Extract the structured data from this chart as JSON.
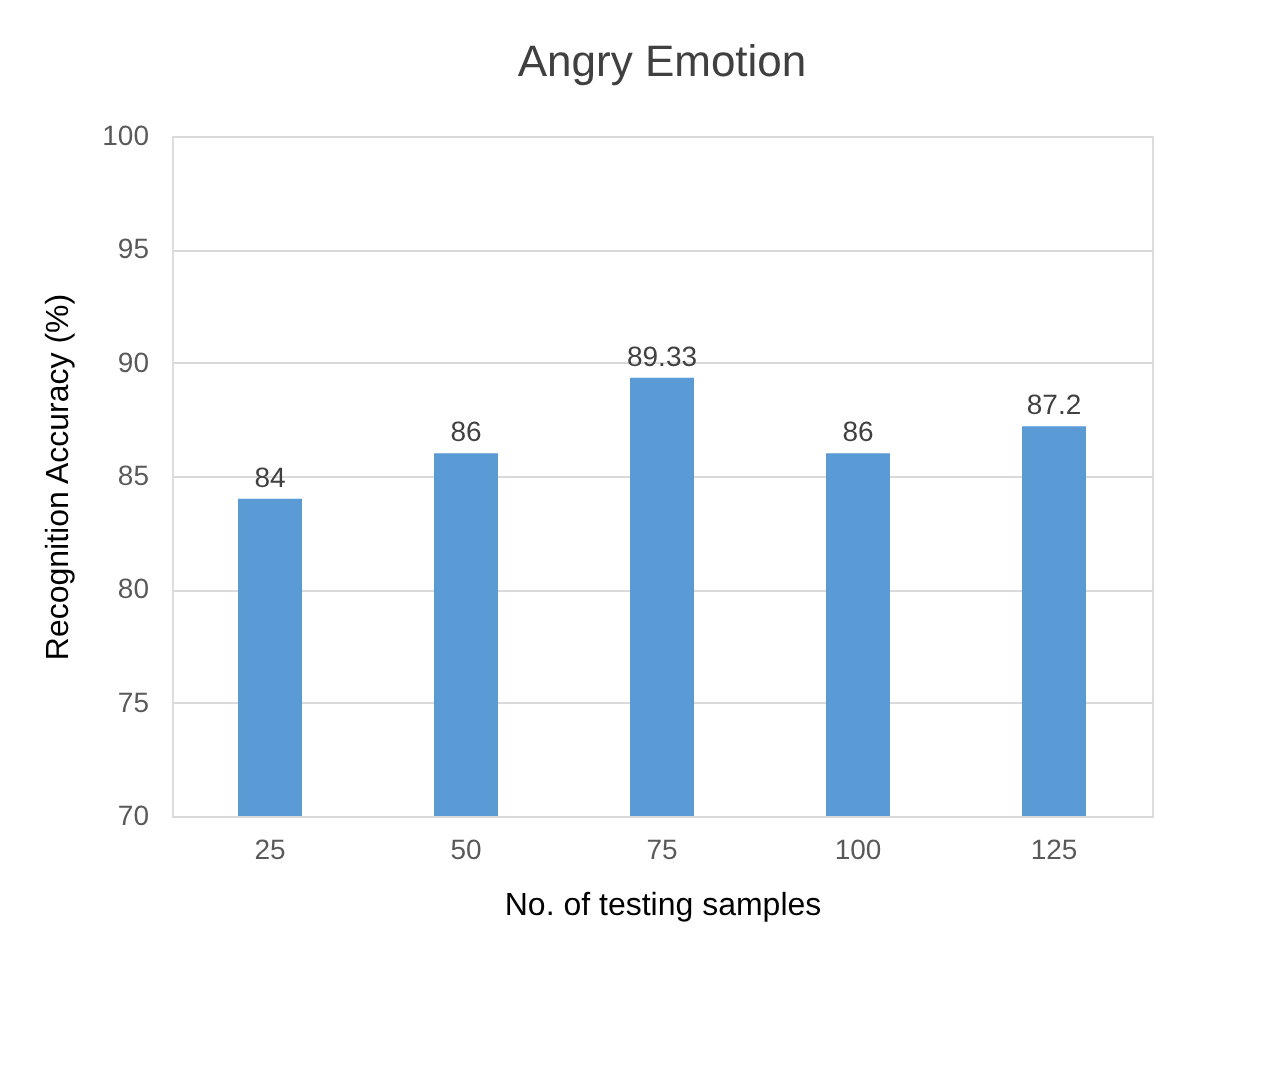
{
  "chart_data": {
    "type": "bar",
    "title": "Angry Emotion",
    "xlabel": "No. of testing samples",
    "ylabel": "Recognition Accuracy (%)",
    "categories": [
      "25",
      "50",
      "75",
      "100",
      "125"
    ],
    "values": [
      84,
      86,
      89.33,
      86,
      87.2
    ],
    "color": "#5b9bd5",
    "ylim": [
      70,
      100
    ],
    "yticks": [
      70,
      75,
      80,
      85,
      90,
      95,
      100
    ],
    "grid": "y",
    "data_labels": true
  }
}
